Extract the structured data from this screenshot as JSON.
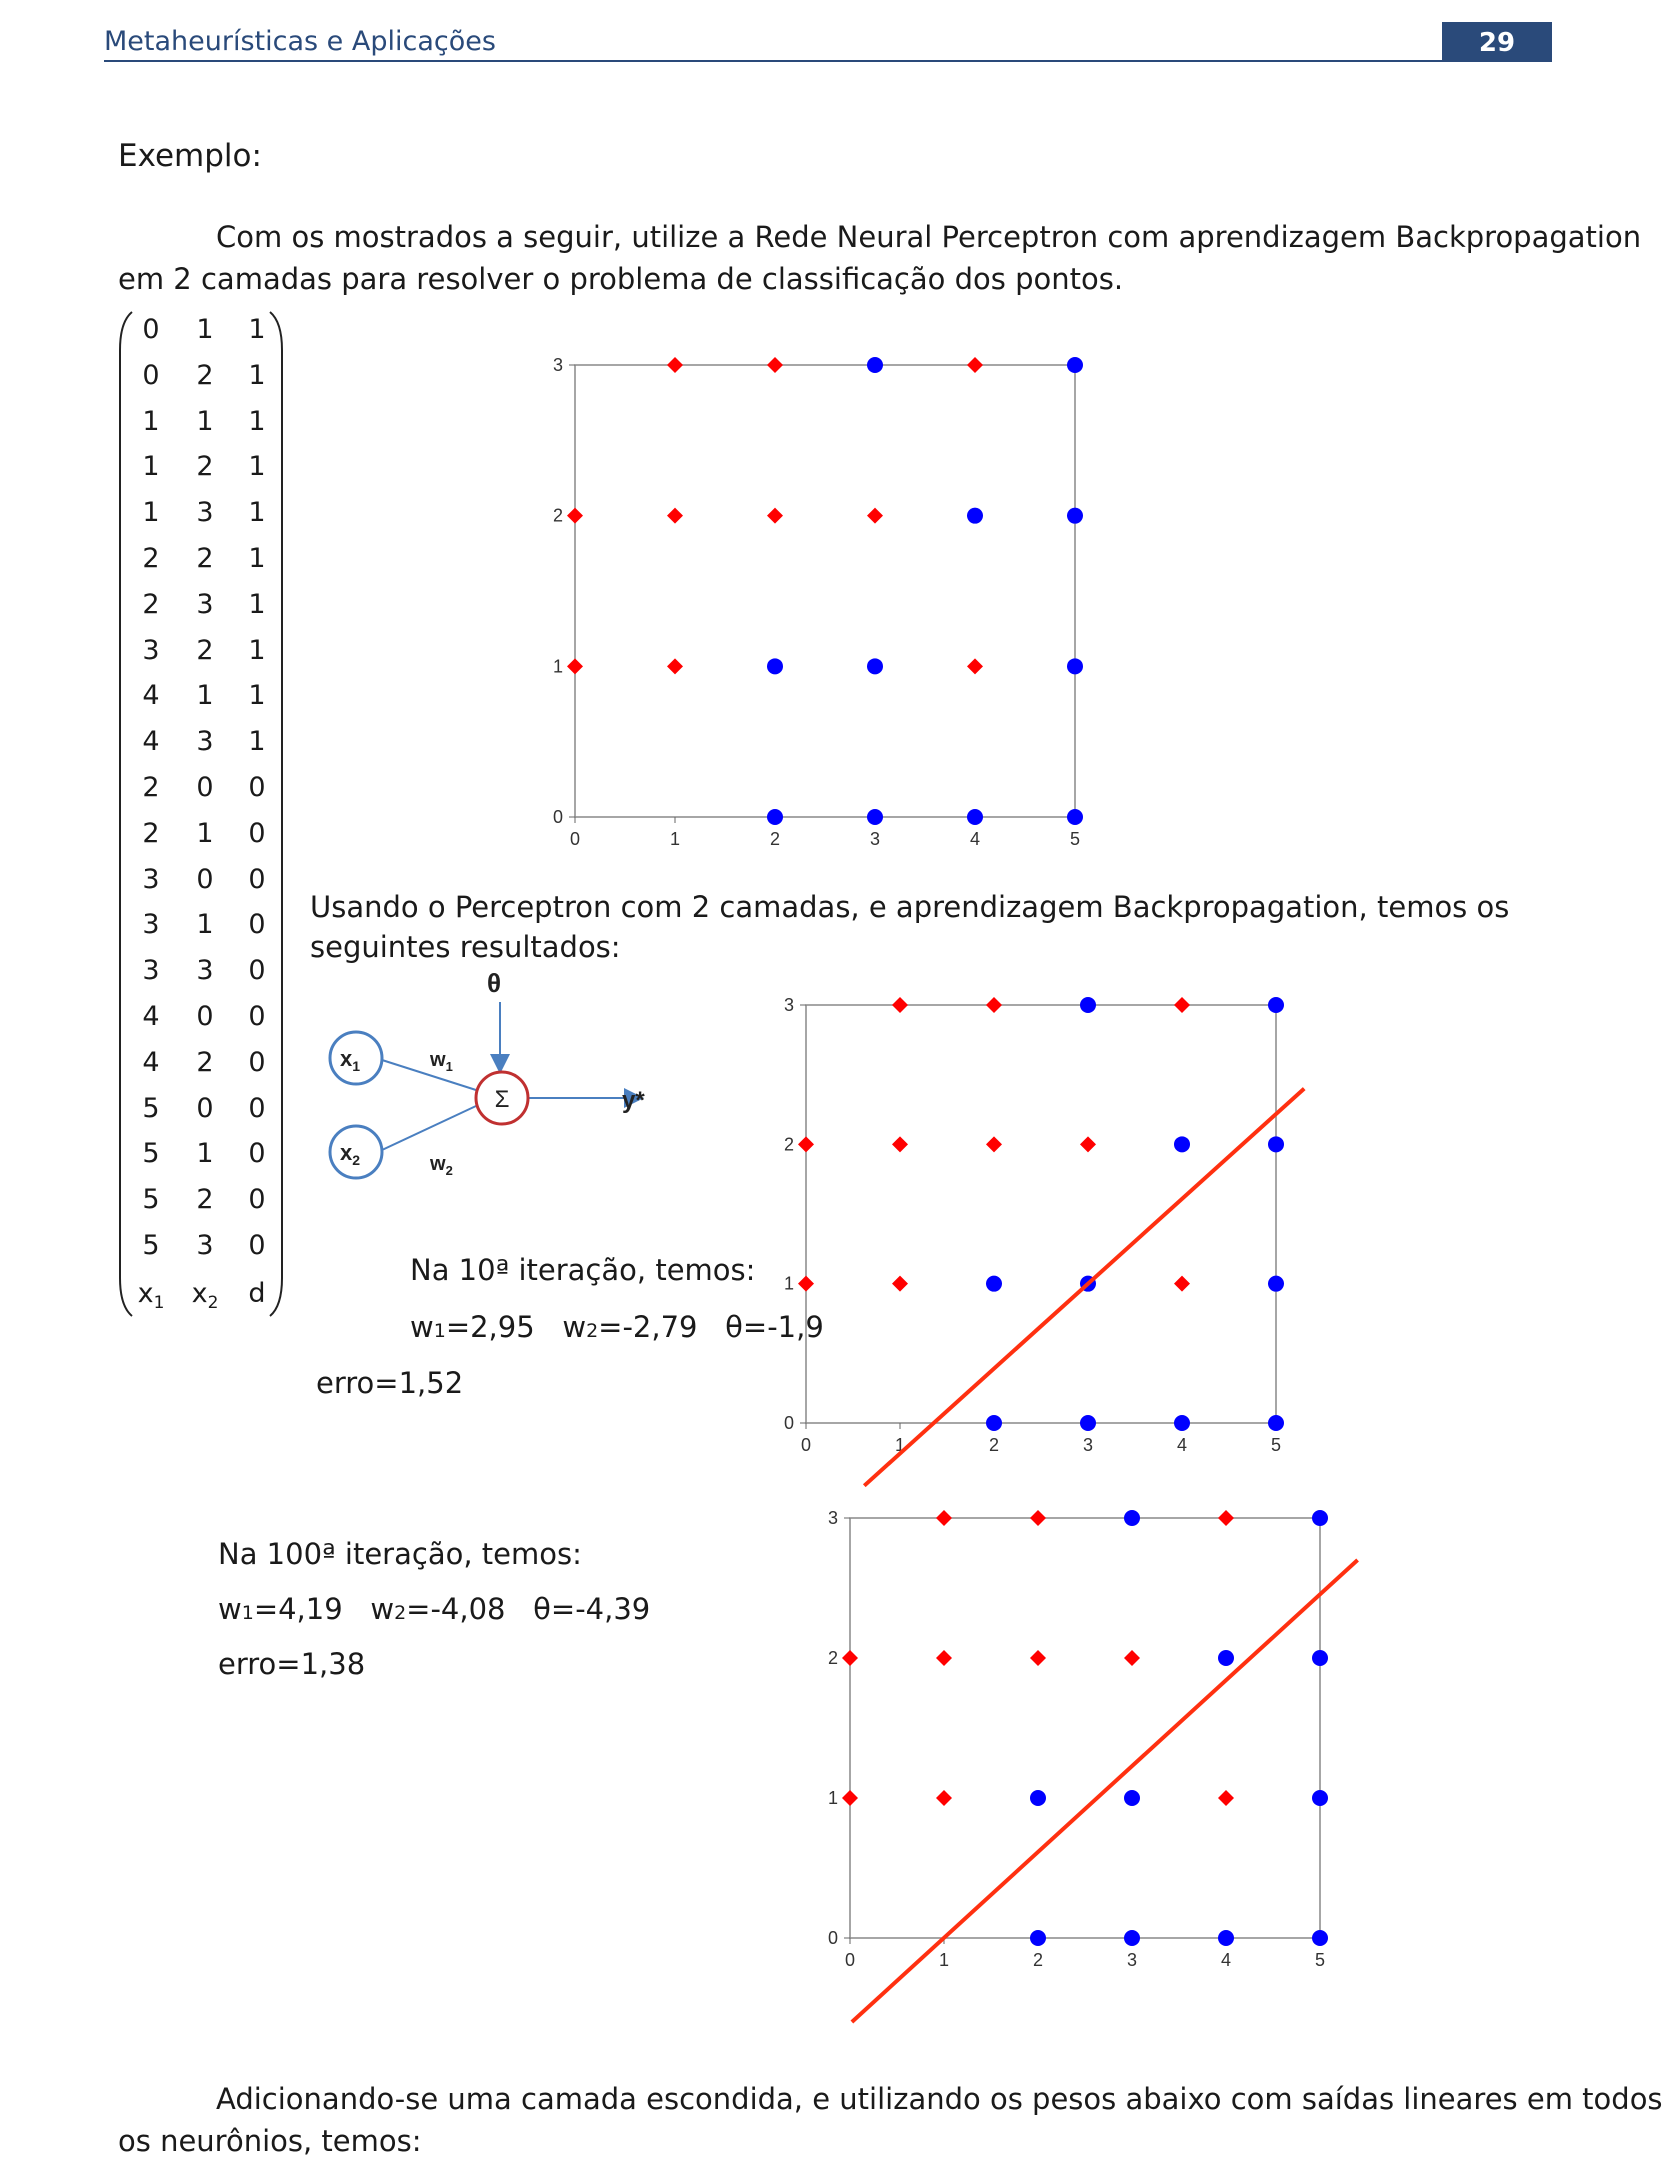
{
  "header": {
    "title": "Metaheurísticas e Aplicações",
    "page_number": "29"
  },
  "heading": "Exemplo:",
  "intro": {
    "line1": "Com os mostrados a seguir, utilize a Rede Neural Perceptron com aprendizagem Backpropagation",
    "line2": "em 2 camadas para resolver o problema de classificação dos pontos."
  },
  "matrix": {
    "rows": [
      [
        "0",
        "1",
        "1"
      ],
      [
        "0",
        "2",
        "1"
      ],
      [
        "1",
        "1",
        "1"
      ],
      [
        "1",
        "2",
        "1"
      ],
      [
        "1",
        "3",
        "1"
      ],
      [
        "2",
        "2",
        "1"
      ],
      [
        "2",
        "3",
        "1"
      ],
      [
        "3",
        "2",
        "1"
      ],
      [
        "4",
        "1",
        "1"
      ],
      [
        "4",
        "3",
        "1"
      ],
      [
        "2",
        "0",
        "0"
      ],
      [
        "2",
        "1",
        "0"
      ],
      [
        "3",
        "0",
        "0"
      ],
      [
        "3",
        "1",
        "0"
      ],
      [
        "3",
        "3",
        "0"
      ],
      [
        "4",
        "0",
        "0"
      ],
      [
        "4",
        "2",
        "0"
      ],
      [
        "5",
        "0",
        "0"
      ],
      [
        "5",
        "1",
        "0"
      ],
      [
        "5",
        "2",
        "0"
      ],
      [
        "5",
        "3",
        "0"
      ]
    ],
    "footer": {
      "x1": "x",
      "x1_sub": "1",
      "x2": "x",
      "x2_sub": "2",
      "d": "d"
    }
  },
  "using": {
    "line1": "Usando o Perceptron com 2 camadas, e aprendizagem Backpropagation, temos os",
    "line2": "seguintes resultados:"
  },
  "diagram": {
    "theta": "θ",
    "x1": "x",
    "x1_sub": "1",
    "x2": "x",
    "x2_sub": "2",
    "w1": "w",
    "w1_sub": "1",
    "w2": "w",
    "w2_sub": "2",
    "sum": "Σ",
    "output": "y*"
  },
  "iter10": {
    "title": "Na 10ª iteração, temos:",
    "w1_label": "w",
    "w1_sub": "1",
    "w1_val": "=2,95",
    "w2_label": "w",
    "w2_sub": "2",
    "w2_val": "=-2,79",
    "theta_label": "θ",
    "theta_val": "=-1,9",
    "erro": "erro=1,52"
  },
  "iter100": {
    "title": "Na 100ª iteração, temos:",
    "w1_label": "w",
    "w1_sub": "1",
    "w1_val": "=4,19",
    "w2_label": "w",
    "w2_sub": "2",
    "w2_val": "=-4,08",
    "theta_label": "θ",
    "theta_val": "=-4,39",
    "erro": "erro=1,38"
  },
  "closing": {
    "line1": "Adicionando-se uma camada escondida, e utilizando os pesos abaixo com saídas lineares em todos",
    "line2": "os neurônios, temos:"
  },
  "colors": {
    "class1": "#ff0000",
    "class0": "#0000ff",
    "line": "#ff3010",
    "header": "#2a4a7a"
  },
  "chart_data": [
    {
      "type": "scatter",
      "title": "",
      "xlim": [
        0,
        5
      ],
      "ylim": [
        0,
        3
      ],
      "x_ticks": [
        "0",
        "1",
        "2",
        "3",
        "4",
        "5"
      ],
      "y_ticks": [
        "0",
        "1",
        "2",
        "3"
      ],
      "series": [
        {
          "marker": "diamond",
          "color": "#ff0000",
          "points": [
            [
              0,
              1
            ],
            [
              0,
              2
            ],
            [
              1,
              1
            ],
            [
              1,
              2
            ],
            [
              1,
              3
            ],
            [
              2,
              2
            ],
            [
              2,
              3
            ],
            [
              3,
              2
            ],
            [
              4,
              1
            ],
            [
              4,
              3
            ]
          ]
        },
        {
          "marker": "circle",
          "color": "#0000ff",
          "points": [
            [
              2,
              0
            ],
            [
              2,
              1
            ],
            [
              3,
              0
            ],
            [
              3,
              1
            ],
            [
              3,
              3
            ],
            [
              4,
              0
            ],
            [
              4,
              2
            ],
            [
              5,
              0
            ],
            [
              5,
              1
            ],
            [
              5,
              2
            ],
            [
              5,
              3
            ]
          ]
        }
      ]
    },
    {
      "type": "scatter",
      "title": "",
      "xlim": [
        0,
        5
      ],
      "ylim": [
        0,
        3
      ],
      "x_ticks": [
        "0",
        "1",
        "2",
        "3",
        "4",
        "5"
      ],
      "y_ticks": [
        "0",
        "1",
        "2",
        "3"
      ],
      "series": [
        {
          "marker": "diamond",
          "color": "#ff0000",
          "points": [
            [
              0,
              1
            ],
            [
              0,
              2
            ],
            [
              1,
              1
            ],
            [
              1,
              2
            ],
            [
              1,
              3
            ],
            [
              2,
              2
            ],
            [
              2,
              3
            ],
            [
              3,
              2
            ],
            [
              4,
              1
            ],
            [
              4,
              3
            ]
          ]
        },
        {
          "marker": "circle",
          "color": "#0000ff",
          "points": [
            [
              2,
              0
            ],
            [
              2,
              1
            ],
            [
              3,
              0
            ],
            [
              3,
              1
            ],
            [
              3,
              3
            ],
            [
              4,
              0
            ],
            [
              4,
              2
            ],
            [
              5,
              0
            ],
            [
              5,
              1
            ],
            [
              5,
              2
            ],
            [
              5,
              3
            ]
          ]
        }
      ],
      "decision_line": {
        "x1": 0.62,
        "y1": -0.45,
        "x2": 5.3,
        "y2": 2.4
      }
    },
    {
      "type": "scatter",
      "title": "",
      "xlim": [
        0,
        5
      ],
      "ylim": [
        0,
        3
      ],
      "x_ticks": [
        "0",
        "1",
        "2",
        "3",
        "4",
        "5"
      ],
      "y_ticks": [
        "0",
        "1",
        "2",
        "3"
      ],
      "series": [
        {
          "marker": "diamond",
          "color": "#ff0000",
          "points": [
            [
              0,
              1
            ],
            [
              0,
              2
            ],
            [
              1,
              1
            ],
            [
              1,
              2
            ],
            [
              1,
              3
            ],
            [
              2,
              2
            ],
            [
              2,
              3
            ],
            [
              3,
              2
            ],
            [
              4,
              1
            ],
            [
              4,
              3
            ]
          ]
        },
        {
          "marker": "circle",
          "color": "#0000ff",
          "points": [
            [
              2,
              0
            ],
            [
              2,
              1
            ],
            [
              3,
              0
            ],
            [
              3,
              1
            ],
            [
              3,
              3
            ],
            [
              4,
              0
            ],
            [
              4,
              2
            ],
            [
              5,
              0
            ],
            [
              5,
              1
            ],
            [
              5,
              2
            ],
            [
              5,
              3
            ]
          ]
        }
      ],
      "decision_line": {
        "x1": 0.02,
        "y1": -0.6,
        "x2": 5.4,
        "y2": 2.7
      }
    }
  ]
}
